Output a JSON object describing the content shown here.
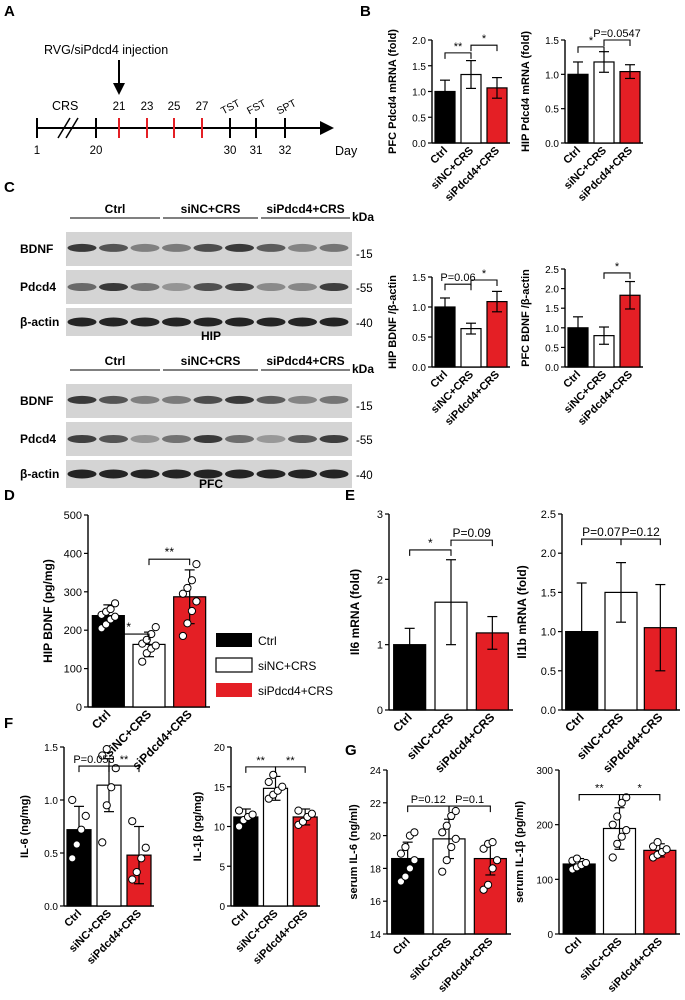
{
  "panels": {
    "a": "A",
    "b": "B",
    "c": "C",
    "d": "D",
    "e": "E",
    "f": "F",
    "g": "G"
  },
  "timeline": {
    "injection": "RVG/siPdcd4 injection",
    "crs": "CRS",
    "days": [
      "1",
      "20",
      "21",
      "23",
      "25",
      "27",
      "30",
      "31",
      "32"
    ],
    "tests": [
      "TST",
      "FST",
      "SPT"
    ],
    "axis_label": "Day"
  },
  "groups": [
    "Ctrl",
    "siNC+CRS",
    "siPdcd4+CRS"
  ],
  "legend": [
    "Ctrl",
    "siNC+CRS",
    "siPdcd4+CRS"
  ],
  "colors": {
    "ctrl": "#000000",
    "sinc": "#ffffff",
    "sipdcd4": "#e41f25"
  },
  "blot": {
    "kda": "kDa",
    "hip_label": "HIP",
    "pfc_label": "PFC",
    "rows": [
      "BDNF",
      "Pdcd4",
      "β-actin"
    ],
    "markers": [
      "-15",
      "-55",
      "-40"
    ]
  },
  "chart_data": [
    {
      "id": "b_pfc",
      "type": "bar",
      "categories": [
        "Ctrl",
        "siNC+CRS",
        "siPdcd4+CRS"
      ],
      "values": [
        1.0,
        1.33,
        1.07
      ],
      "errors": [
        0.22,
        0.27,
        0.2
      ],
      "ylabel": "PFC Pdcd4 mRNA (fold)",
      "ylim": [
        0,
        2.0
      ],
      "yticks": [
        "0.0",
        "0.5",
        "1.0",
        "1.5",
        "2.0"
      ],
      "annotations": [
        "**",
        "*"
      ]
    },
    {
      "id": "b_hip",
      "type": "bar",
      "categories": [
        "Ctrl",
        "siNC+CRS",
        "siPdcd4+CRS"
      ],
      "values": [
        1.0,
        1.18,
        1.04
      ],
      "errors": [
        0.18,
        0.15,
        0.1
      ],
      "ylabel": "HIP Pdcd4 mRNA (fold)",
      "ylim": [
        0,
        1.5
      ],
      "yticks": [
        "0.0",
        "0.5",
        "1.0",
        "1.5"
      ],
      "annotations": [
        "*",
        "P=0.0547"
      ]
    },
    {
      "id": "c_hip",
      "type": "bar",
      "categories": [
        "Ctrl",
        "siNC+CRS",
        "siPdcd4+CRS"
      ],
      "values": [
        1.0,
        0.64,
        1.09
      ],
      "errors": [
        0.15,
        0.09,
        0.17
      ],
      "ylabel": "HIP BDNF /β-actin",
      "ylim": [
        0,
        1.5
      ],
      "yticks": [
        "0.0",
        "0.5",
        "1.0",
        "1.5"
      ],
      "annotations": [
        "P=0.06",
        "*"
      ]
    },
    {
      "id": "c_pfc",
      "type": "bar",
      "categories": [
        "Ctrl",
        "siNC+CRS",
        "siPdcd4+CRS"
      ],
      "values": [
        1.0,
        0.8,
        1.83
      ],
      "errors": [
        0.28,
        0.22,
        0.35
      ],
      "ylabel": "PFC BDNF /β-actin",
      "ylim": [
        0,
        2.5
      ],
      "yticks": [
        "0.0",
        "0.5",
        "1.0",
        "1.5",
        "2.0",
        "2.5"
      ],
      "annotations": [
        "*"
      ]
    },
    {
      "id": "d",
      "type": "bar",
      "categories": [
        "Ctrl",
        "siNC+CRS",
        "siPdcd4+CRS"
      ],
      "values": [
        238,
        163,
        287
      ],
      "errors": [
        28,
        32,
        70
      ],
      "points": [
        [
          205,
          215,
          228,
          235,
          240,
          248,
          255,
          270
        ],
        [
          118,
          140,
          152,
          160,
          165,
          175,
          190,
          208
        ],
        [
          185,
          218,
          250,
          275,
          295,
          310,
          330,
          372
        ]
      ],
      "ylabel": "HIP BDNF (pg/mg)",
      "ylim": [
        0,
        500
      ],
      "yticks": [
        "0",
        "100",
        "200",
        "300",
        "400",
        "500"
      ],
      "annotations": [
        "*",
        "**"
      ]
    },
    {
      "id": "e_il6",
      "type": "bar",
      "categories": [
        "Ctrl",
        "siNC+CRS",
        "siPdcd4+CRS"
      ],
      "values": [
        1.0,
        1.65,
        1.18
      ],
      "errors": [
        0.25,
        0.65,
        0.25
      ],
      "ylabel": "Il6 mRNA (fold)",
      "ylim": [
        0,
        3
      ],
      "yticks": [
        "0",
        "1",
        "2",
        "3"
      ],
      "annotations": [
        "*",
        "P=0.09"
      ]
    },
    {
      "id": "e_il1b",
      "type": "bar",
      "categories": [
        "Ctrl",
        "siNC+CRS",
        "siPdcd4+CRS"
      ],
      "values": [
        1.0,
        1.5,
        1.05
      ],
      "errors": [
        0.62,
        0.38,
        0.55
      ],
      "ylabel": "Il1b mRNA (fold)",
      "ylim": [
        0,
        2.5
      ],
      "yticks": [
        "0.0",
        "0.5",
        "1.0",
        "1.5",
        "2.0",
        "2.5"
      ],
      "annotations": [
        "P=0.07",
        "P=0.12"
      ]
    },
    {
      "id": "f_il6",
      "type": "bar",
      "categories": [
        "Ctrl",
        "siNC+CRS",
        "siPdcd4+CRS"
      ],
      "values": [
        0.72,
        1.14,
        0.48
      ],
      "errors": [
        0.22,
        0.25,
        0.27
      ],
      "points": [
        [
          0.45,
          0.58,
          0.72,
          0.85,
          1.0
        ],
        [
          0.6,
          0.95,
          1.12,
          1.3,
          1.42,
          1.48
        ],
        [
          0.25,
          0.32,
          0.45,
          0.55,
          0.8
        ]
      ],
      "ylabel": "IL-6 (ng/mg)",
      "ylim": [
        0,
        1.5
      ],
      "yticks": [
        "0.0",
        "0.5",
        "1.0",
        "1.5"
      ],
      "annotations": [
        "P=0.053",
        "**"
      ]
    },
    {
      "id": "f_il1b",
      "type": "bar",
      "categories": [
        "Ctrl",
        "siNC+CRS",
        "siPdcd4+CRS"
      ],
      "values": [
        11.2,
        14.8,
        11.2
      ],
      "errors": [
        1.0,
        1.5,
        1.0
      ],
      "points": [
        [
          10.0,
          10.8,
          11.2,
          11.5,
          12.0
        ],
        [
          13.5,
          14.0,
          14.5,
          15.0,
          15.6,
          16.5
        ],
        [
          10.2,
          10.6,
          11.2,
          11.6,
          12.0
        ]
      ],
      "ylabel": "IL-1β (pg/mg)",
      "ylim": [
        0,
        20
      ],
      "yticks": [
        "0",
        "5",
        "10",
        "15",
        "20"
      ],
      "annotations": [
        "**",
        "**"
      ]
    },
    {
      "id": "g_il6",
      "type": "bar",
      "categories": [
        "Ctrl",
        "siNC+CRS",
        "siPdcd4+CRS"
      ],
      "values": [
        18.6,
        19.8,
        18.6
      ],
      "errors": [
        1.0,
        1.2,
        1.0
      ],
      "points": [
        [
          17.2,
          17.5,
          18.0,
          18.5,
          18.9,
          19.3,
          20.0,
          20.2
        ],
        [
          17.8,
          18.5,
          19.3,
          19.8,
          20.2,
          20.6,
          21.2,
          21.5
        ],
        [
          16.7,
          17.0,
          18.0,
          18.5,
          19.2,
          19.5,
          19.6
        ]
      ],
      "ylabel": "serum IL-6 (ng/ml)",
      "ylim": [
        14,
        24
      ],
      "yticks": [
        "14",
        "16",
        "18",
        "20",
        "22",
        "24"
      ],
      "annotations": [
        "P=0.12",
        "P=0.1"
      ]
    },
    {
      "id": "g_il1b",
      "type": "bar",
      "categories": [
        "Ctrl",
        "siNC+CRS",
        "siPdcd4+CRS"
      ],
      "values": [
        128,
        193,
        153
      ],
      "errors": [
        10,
        38,
        12
      ],
      "points": [
        [
          118,
          122,
          126,
          130,
          134,
          138
        ],
        [
          140,
          165,
          178,
          190,
          200,
          215,
          240,
          250
        ],
        [
          140,
          145,
          150,
          155,
          160,
          168
        ]
      ],
      "ylabel": "serum IL-1β (pg/ml)",
      "ylim": [
        0,
        300
      ],
      "yticks": [
        "0",
        "100",
        "200",
        "300"
      ],
      "annotations": [
        "**",
        "*"
      ]
    }
  ]
}
